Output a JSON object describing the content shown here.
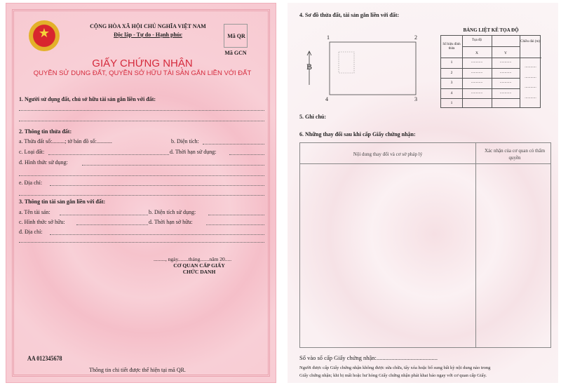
{
  "left": {
    "emblem": "vietnam-national-emblem",
    "nation": "CỘNG HÒA XÃ HỘI CHỦ NGHĨA VIỆT NAM",
    "motto": "Độc lập - Tự do - Hạnh phúc",
    "qr_label": "Mã QR",
    "gcn_label": "Mã GCN",
    "title": "GIẤY CHỨNG NHẬN",
    "subtitle": "QUYỀN SỬ DỤNG ĐẤT, QUYỀN SỞ HỮU TÀI SẢN GẮN LIỀN VỚI ĐẤT",
    "s1": "1. Người sử dụng đất, chủ sở hữu tài sản gắn liền với đất:",
    "s2": "2. Thông tin thửa đất:",
    "s2a": "a. Thửa đất số:.........; tờ bản đồ số:...........",
    "s2b": "b. Diện tích:",
    "s2c": "c. Loại đất:",
    "s2d": "d. Thời hạn sử dụng:",
    "s2dd": "đ. Hình thức sử dụng:",
    "s2e": "e. Địa chỉ:",
    "s3": "3. Thông tin tài sản gắn liền với đất:",
    "s3a": "a. Tên tài sản:",
    "s3b": "b. Diện tích sử dụng:",
    "s3c": "c. Hình thức sở hữu:",
    "s3d": "d. Thời hạn sở hữu:",
    "s3dd": "đ. Địa chỉ:",
    "date": "........., ngày........tháng.......năm 20.....",
    "agency": "CƠ QUAN CẤP GIẤY",
    "position": "CHỨC DANH",
    "serial": "AA 012345678",
    "footer": "Thông tin chi tiết được thể hiện tại mã QR."
  },
  "right": {
    "s4": "4. Sơ đồ thửa đất, tài sản gắn liền với đất:",
    "corners": [
      "1",
      "2",
      "3",
      "4"
    ],
    "north": "B",
    "coord_title": "BẢNG LIỆT KÊ TỌA ĐỘ",
    "coord_headers": {
      "point": "Số hiệu đỉnh thửa",
      "coord": "Tọa độ",
      "x": "X",
      "y": "Y",
      "length": "Chiều dài (m)"
    },
    "coord_rows": [
      "1",
      "2",
      "3",
      "4",
      "1"
    ],
    "placeholder": "............",
    "s5": "5. Ghi chú:",
    "s6": "6. Những thay đổi sau khi cấp Giấy chứng nhận:",
    "changes_headers": [
      "Nội dung thay đổi và cơ sở pháp lý",
      "Xác nhận của cơ quan có thẩm quyền"
    ],
    "register": "Số vào sổ cấp Giấy chứng nhận:.........................................",
    "note1": "Người được cấp Giấy chứng nhận không được sửa chữa, tẩy xóa hoặc bổ sung bất kỳ nội dung nào trong",
    "note2": "Giấy chứng nhận; khi bị mất hoặc hư hỏng Giấy chứng nhận phải khai báo ngay với cơ quan cấp Giấy."
  },
  "colors": {
    "title_red": "#d52a3c",
    "paper_pink": "#f7c9d1"
  }
}
